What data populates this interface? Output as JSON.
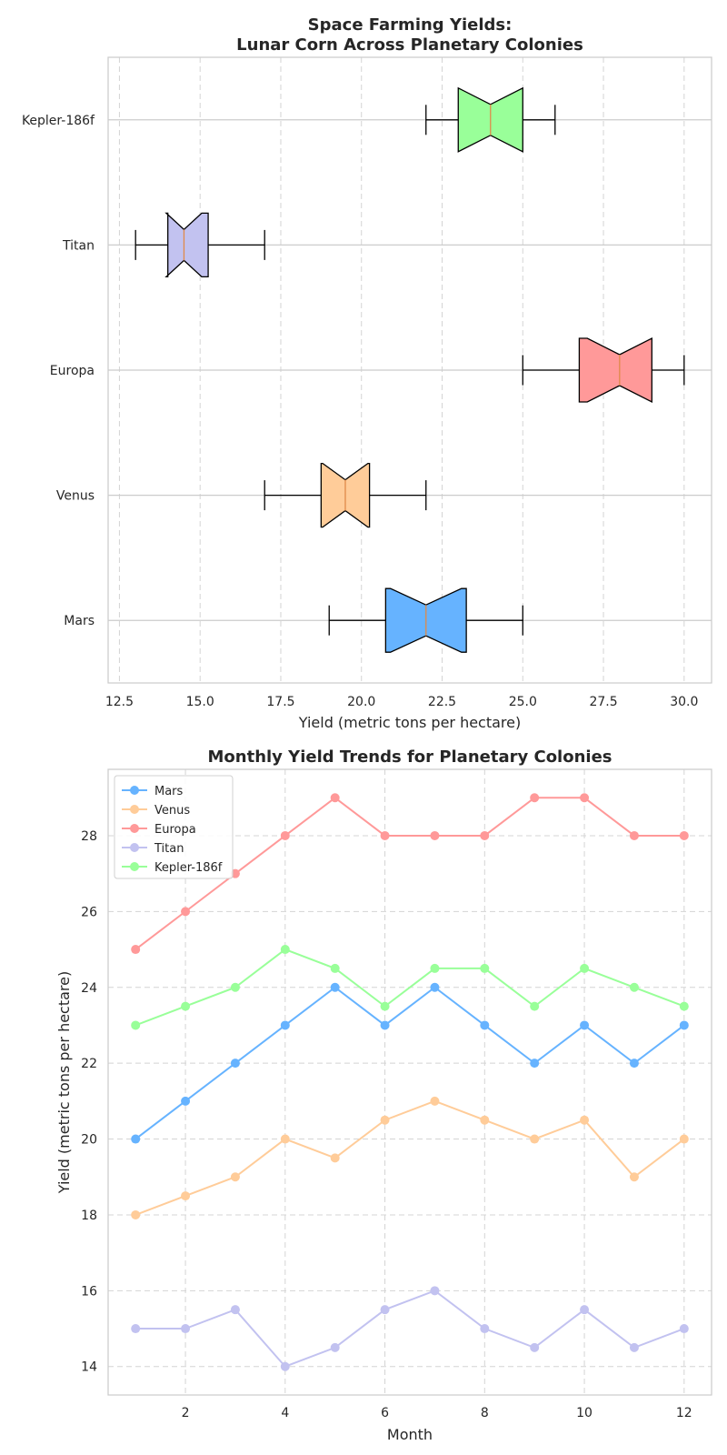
{
  "chart_data": [
    {
      "type": "boxplot",
      "title_lines": [
        "Space Farming Yields:",
        "Lunar Corn Across Planetary Colonies"
      ],
      "xlabel": "Yield (metric tons per hectare)",
      "ylabel": "",
      "orientation": "horizontal",
      "notched": true,
      "xlim": [
        12.15,
        30.85
      ],
      "xticks": [
        12.5,
        15.0,
        17.5,
        20.0,
        22.5,
        25.0,
        27.5,
        30.0
      ],
      "xtick_labels": [
        "12.5",
        "15.0",
        "17.5",
        "20.0",
        "22.5",
        "25.0",
        "27.5",
        "30.0"
      ],
      "grid": "x dashed, y solid",
      "categories": [
        "Mars",
        "Venus",
        "Europa",
        "Titan",
        "Kepler-186f"
      ],
      "boxes": [
        {
          "name": "Mars",
          "whisker_low": 19,
          "q1": 20.75,
          "median": 22,
          "q3": 23.25,
          "whisker_high": 25,
          "notch_low": 20.9,
          "notch_high": 23.1,
          "color": "#66b3ff"
        },
        {
          "name": "Venus",
          "whisker_low": 17,
          "q1": 18.75,
          "median": 19.5,
          "q3": 20.25,
          "whisker_high": 22,
          "notch_low": 18.8,
          "notch_high": 20.2,
          "color": "#ffcc99"
        },
        {
          "name": "Europa",
          "whisker_low": 25,
          "q1": 26.75,
          "median": 28,
          "q3": 29,
          "whisker_high": 30,
          "notch_low": 27.0,
          "notch_high": 29.0,
          "color": "#ff9999"
        },
        {
          "name": "Titan",
          "whisker_low": 13,
          "q1": 14.0,
          "median": 14.5,
          "q3": 15.25,
          "whisker_high": 17,
          "notch_low": 13.95,
          "notch_high": 15.05,
          "color": "#c2c2f0"
        },
        {
          "name": "Kepler-186f",
          "whisker_low": 22,
          "q1": 23,
          "median": 24,
          "q3": 25,
          "whisker_high": 26,
          "notch_low": 23.0,
          "notch_high": 25.0,
          "color": "#99ff99"
        }
      ]
    },
    {
      "type": "line",
      "title": "Monthly Yield Trends for Planetary Colonies",
      "xlabel": "Month",
      "ylabel": "Yield (metric tons per hectare)",
      "xlim": [
        0.45,
        12.55
      ],
      "ylim": [
        13.25,
        29.75
      ],
      "xticks": [
        2,
        4,
        6,
        8,
        10,
        12
      ],
      "yticks": [
        14,
        16,
        18,
        20,
        22,
        24,
        26,
        28
      ],
      "grid": "dashed both",
      "legend_position": "upper-left",
      "x": [
        1,
        2,
        3,
        4,
        5,
        6,
        7,
        8,
        9,
        10,
        11,
        12
      ],
      "series": [
        {
          "name": "Mars",
          "color": "#66b3ff",
          "values": [
            20,
            21,
            22,
            23,
            24,
            23,
            24,
            23,
            22,
            23,
            22,
            23
          ]
        },
        {
          "name": "Venus",
          "color": "#ffcc99",
          "values": [
            18,
            18.5,
            19,
            20,
            19.5,
            20.5,
            21,
            20.5,
            20,
            20.5,
            19,
            20
          ]
        },
        {
          "name": "Europa",
          "color": "#ff9999",
          "values": [
            25,
            26,
            27,
            28,
            29,
            28,
            28,
            28,
            29,
            29,
            28,
            28
          ]
        },
        {
          "name": "Titan",
          "color": "#c2c2f0",
          "values": [
            15,
            15,
            15.5,
            14,
            14.5,
            15.5,
            16,
            15,
            14.5,
            15.5,
            14.5,
            15
          ]
        },
        {
          "name": "Kepler-186f",
          "color": "#99ff99",
          "values": [
            23,
            23.5,
            24,
            25,
            24.5,
            23.5,
            24.5,
            24.5,
            23.5,
            24.5,
            24,
            23.5
          ]
        }
      ]
    }
  ]
}
